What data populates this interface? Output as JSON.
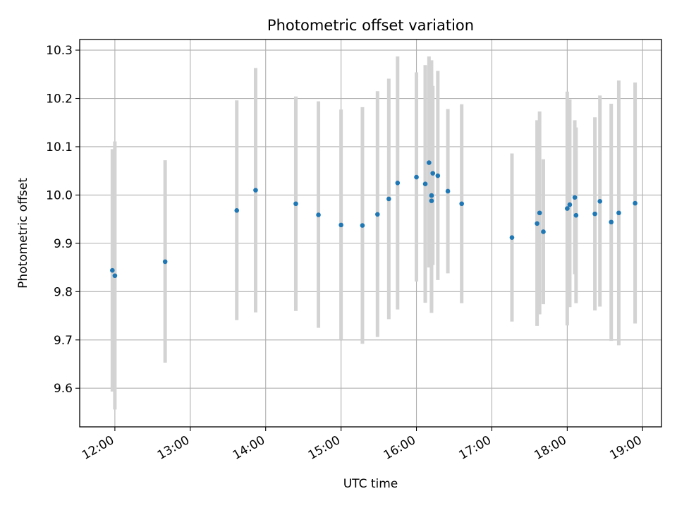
{
  "chart_data": {
    "type": "scatter",
    "title": "Photometric offset variation",
    "xlabel": "UTC time",
    "ylabel": "Photometric offset",
    "xlim": [
      "11:32",
      "19:15"
    ],
    "ylim": [
      9.52,
      10.322
    ],
    "x_ticks": [
      "12:00",
      "13:00",
      "14:00",
      "15:00",
      "16:00",
      "17:00",
      "18:00",
      "19:00"
    ],
    "y_ticks": [
      "9.6",
      "9.7",
      "9.8",
      "9.9",
      "10.0",
      "10.1",
      "10.2",
      "10.3"
    ],
    "grid": true,
    "colors": {
      "marker": "#1f77b4",
      "errorbar": "#d3d3d3",
      "grid": "#b0b0b0"
    },
    "points": [
      {
        "time": "11:58",
        "y": 9.844,
        "low": 9.593,
        "high": 10.095
      },
      {
        "time": "12:00",
        "y": 9.833,
        "low": 9.556,
        "high": 10.111
      },
      {
        "time": "12:40",
        "y": 9.862,
        "low": 9.653,
        "high": 10.072
      },
      {
        "time": "13:37",
        "y": 9.968,
        "low": 9.741,
        "high": 10.196
      },
      {
        "time": "13:52",
        "y": 10.01,
        "low": 9.757,
        "high": 10.263
      },
      {
        "time": "14:24",
        "y": 9.982,
        "low": 9.76,
        "high": 10.204
      },
      {
        "time": "14:42",
        "y": 9.959,
        "low": 9.725,
        "high": 10.194
      },
      {
        "time": "15:00",
        "y": 9.938,
        "low": 9.7,
        "high": 10.177
      },
      {
        "time": "15:17",
        "y": 9.937,
        "low": 9.692,
        "high": 10.182
      },
      {
        "time": "15:29",
        "y": 9.96,
        "low": 9.706,
        "high": 10.215
      },
      {
        "time": "15:38",
        "y": 9.992,
        "low": 9.743,
        "high": 10.241
      },
      {
        "time": "15:45",
        "y": 10.025,
        "low": 9.763,
        "high": 10.287
      },
      {
        "time": "16:00",
        "y": 10.037,
        "low": 9.821,
        "high": 10.254
      },
      {
        "time": "16:07",
        "y": 10.023,
        "low": 9.777,
        "high": 10.269
      },
      {
        "time": "16:10",
        "y": 10.067,
        "low": 9.85,
        "high": 10.287
      },
      {
        "time": "16:12",
        "y": 9.999,
        "low": 9.763,
        "high": 10.279
      },
      {
        "time": "16:12",
        "y": 9.988,
        "low": 9.756,
        "high": 10.249
      },
      {
        "time": "16:13",
        "y": 10.045,
        "low": 9.855,
        "high": 10.226
      },
      {
        "time": "16:17",
        "y": 10.04,
        "low": 9.824,
        "high": 10.257
      },
      {
        "time": "16:25",
        "y": 10.008,
        "low": 9.838,
        "high": 10.178
      },
      {
        "time": "16:36",
        "y": 9.982,
        "low": 9.776,
        "high": 10.188
      },
      {
        "time": "17:16",
        "y": 9.912,
        "low": 9.738,
        "high": 10.086
      },
      {
        "time": "17:36",
        "y": 9.941,
        "low": 9.729,
        "high": 10.155
      },
      {
        "time": "17:38",
        "y": 9.963,
        "low": 9.753,
        "high": 10.173
      },
      {
        "time": "17:41",
        "y": 9.924,
        "low": 9.774,
        "high": 10.074
      },
      {
        "time": "18:00",
        "y": 9.972,
        "low": 9.73,
        "high": 10.214
      },
      {
        "time": "18:02",
        "y": 9.98,
        "low": 9.768,
        "high": 10.198
      },
      {
        "time": "18:06",
        "y": 9.995,
        "low": 9.836,
        "high": 10.155
      },
      {
        "time": "18:07",
        "y": 9.958,
        "low": 9.776,
        "high": 10.14
      },
      {
        "time": "18:22",
        "y": 9.961,
        "low": 9.761,
        "high": 10.161
      },
      {
        "time": "18:26",
        "y": 9.987,
        "low": 9.769,
        "high": 10.206
      },
      {
        "time": "18:35",
        "y": 9.944,
        "low": 9.698,
        "high": 10.189
      },
      {
        "time": "18:41",
        "y": 9.963,
        "low": 9.689,
        "high": 10.237
      },
      {
        "time": "18:54",
        "y": 9.983,
        "low": 9.734,
        "high": 10.233
      }
    ]
  }
}
